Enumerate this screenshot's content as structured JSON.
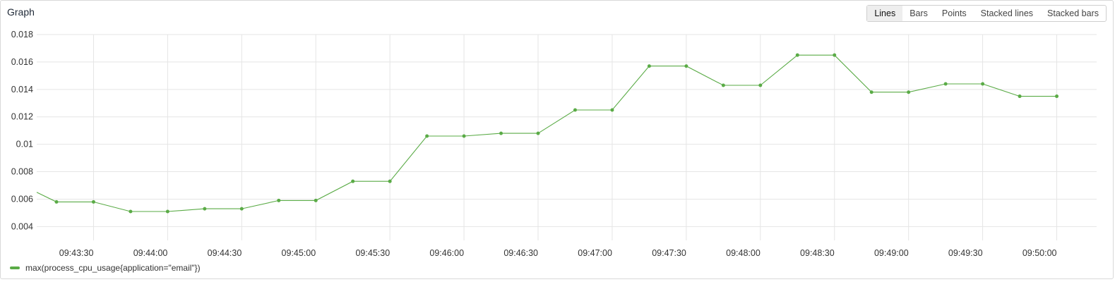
{
  "panel": {
    "title": "Graph"
  },
  "modes": [
    {
      "label": "Lines",
      "active": true
    },
    {
      "label": "Bars",
      "active": false
    },
    {
      "label": "Points",
      "active": false
    },
    {
      "label": "Stacked lines",
      "active": false
    },
    {
      "label": "Stacked bars",
      "active": false
    }
  ],
  "colors": {
    "series": "#5aab46",
    "grid": "#e5e5e5"
  },
  "chart_data": {
    "type": "line",
    "x_ticks": [
      "09:43:30",
      "09:44:00",
      "09:44:30",
      "09:45:00",
      "09:45:30",
      "09:46:00",
      "09:46:30",
      "09:47:00",
      "09:47:30",
      "09:48:00",
      "09:48:30",
      "09:49:00",
      "09:49:30",
      "09:50:00"
    ],
    "y_ticks": [
      "0.018",
      "0.016",
      "0.014",
      "0.012",
      "0.01",
      "0.008",
      "0.006",
      "0.004"
    ],
    "ylim": [
      0.0033,
      0.018
    ],
    "xlim": [
      "09:43:07",
      "09:50:07"
    ],
    "grid": true,
    "legend_position": "bottom-left",
    "series": [
      {
        "name": "max(process_cpu_usage{application=\"email\"})",
        "x": [
          "09:43:07",
          "09:43:15",
          "09:43:30",
          "09:43:45",
          "09:44:00",
          "09:44:15",
          "09:44:30",
          "09:44:45",
          "09:45:00",
          "09:45:15",
          "09:45:30",
          "09:45:45",
          "09:46:00",
          "09:46:15",
          "09:46:30",
          "09:46:45",
          "09:47:00",
          "09:47:15",
          "09:47:30",
          "09:47:45",
          "09:48:00",
          "09:48:15",
          "09:48:30",
          "09:48:45",
          "09:49:00",
          "09:49:15",
          "09:49:30",
          "09:49:45",
          "09:50:00"
        ],
        "values": [
          0.0065,
          0.0058,
          0.0058,
          0.0051,
          0.0051,
          0.0053,
          0.0053,
          0.0059,
          0.0059,
          0.0073,
          0.0073,
          0.0106,
          0.0106,
          0.0108,
          0.0108,
          0.0125,
          0.0125,
          0.0157,
          0.0157,
          0.0143,
          0.0143,
          0.0165,
          0.0165,
          0.0138,
          0.0138,
          0.0144,
          0.0144,
          0.0135,
          0.0135
        ],
        "points_shown": [
          false,
          true,
          true,
          true,
          true,
          true,
          true,
          true,
          true,
          true,
          true,
          true,
          true,
          true,
          true,
          true,
          true,
          true,
          true,
          true,
          true,
          true,
          true,
          true,
          true,
          true,
          true,
          true,
          true
        ]
      }
    ]
  }
}
